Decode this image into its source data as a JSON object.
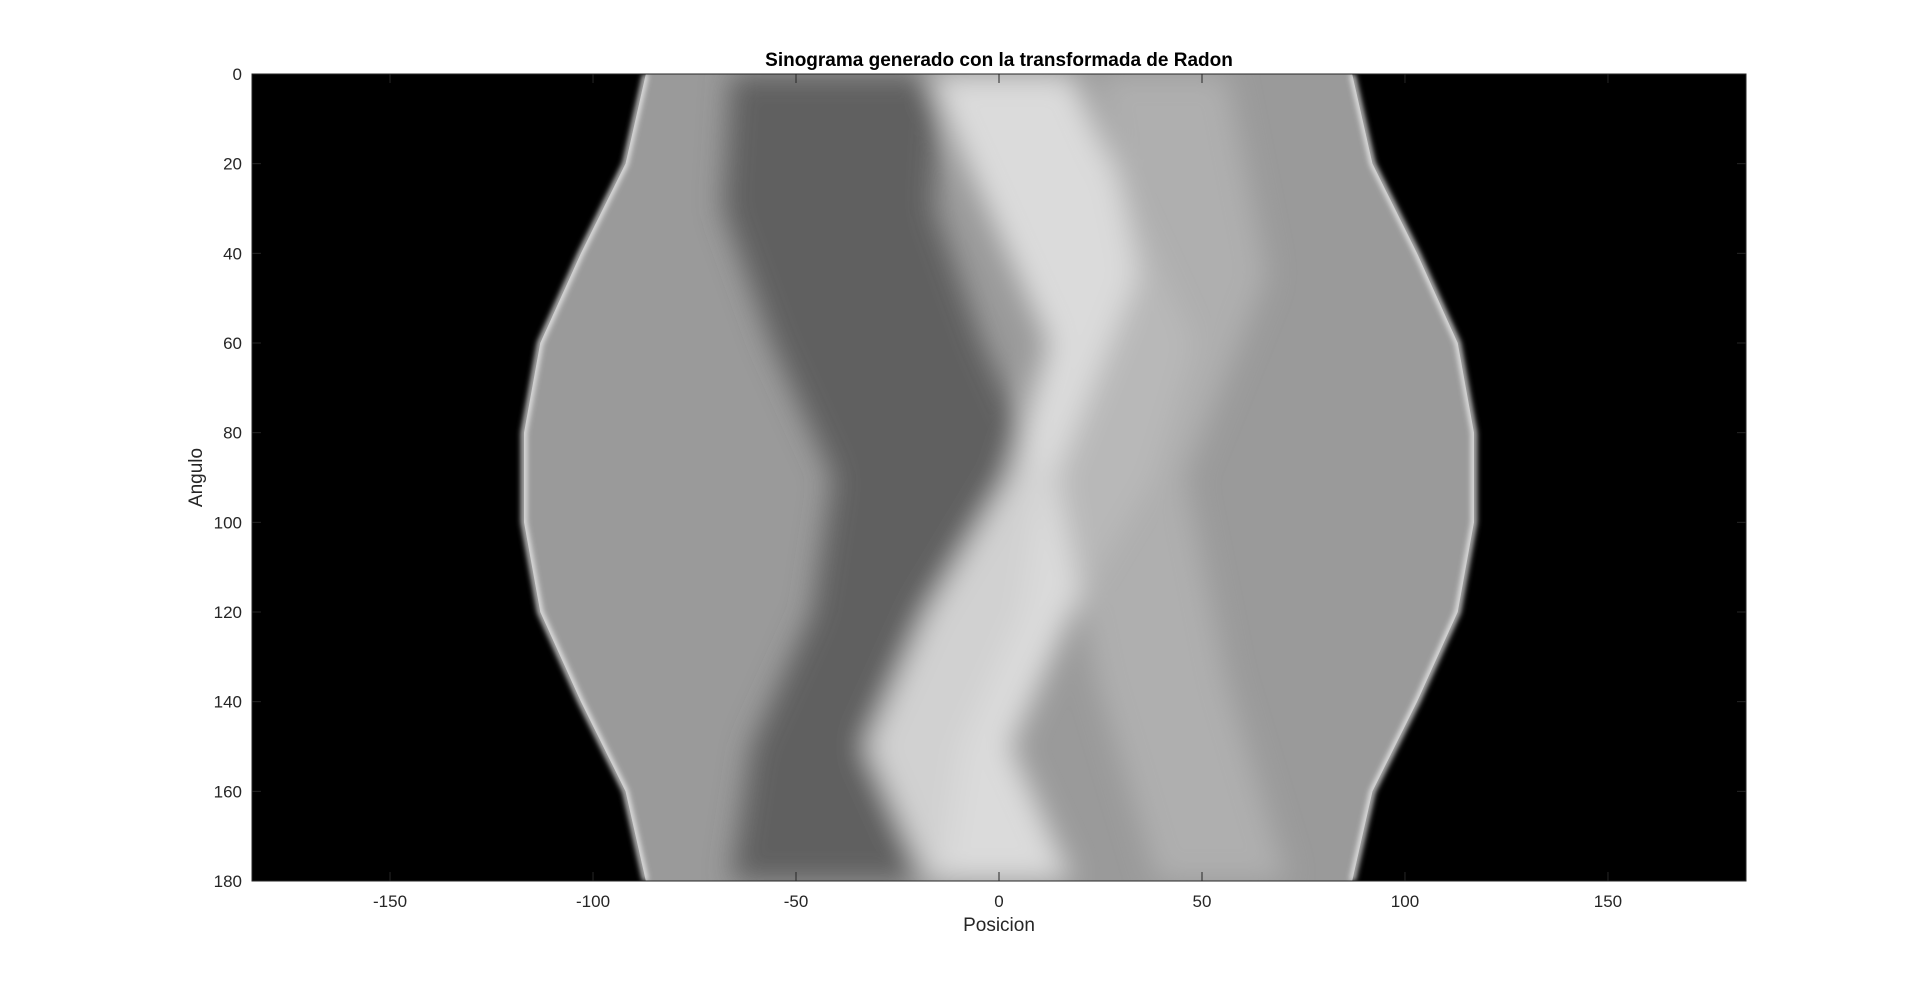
{
  "chart_data": {
    "type": "heatmap",
    "title": "Sinograma generado con la transformada de Radon",
    "xlabel": "Posicion",
    "ylabel": "Angulo",
    "xlim": [
      -184,
      184
    ],
    "ylim": [
      0,
      180
    ],
    "y_reversed": true,
    "colormap": "gray",
    "grid": false,
    "x_ticks": [
      -150,
      -100,
      -50,
      0,
      50,
      100,
      150
    ],
    "x_tick_labels": [
      "-150",
      "-100",
      "-50",
      "0",
      "50",
      "100",
      "150"
    ],
    "y_ticks": [
      0,
      20,
      40,
      60,
      80,
      100,
      120,
      140,
      160,
      180
    ],
    "y_tick_labels": [
      "0",
      "20",
      "40",
      "60",
      "80",
      "100",
      "120",
      "140",
      "160",
      "180"
    ],
    "outer_boundary": {
      "description": "support edges of the projection (bright rim)",
      "angles": [
        0,
        20,
        40,
        60,
        80,
        90,
        100,
        120,
        140,
        160,
        180
      ],
      "left_position": [
        -87,
        -92,
        -103,
        -113,
        -117,
        -117,
        -117,
        -113,
        -103,
        -92,
        -87
      ],
      "right_position": [
        87,
        92,
        103,
        113,
        117,
        117,
        117,
        113,
        103,
        92,
        87
      ]
    },
    "inner_structures": [
      {
        "angles": [
          0,
          30,
          60,
          90,
          120,
          150,
          180
        ],
        "center_position": [
          -40,
          -42,
          -30,
          -15,
          -20,
          -35,
          -40
        ],
        "intensity": "dark"
      },
      {
        "angles": [
          0,
          30,
          60,
          90,
          120,
          150,
          180
        ],
        "center_position": [
          0,
          15,
          30,
          20,
          0,
          -15,
          0
        ],
        "intensity": "bright"
      },
      {
        "angles": [
          0,
          45,
          90,
          135,
          180
        ],
        "center_position": [
          40,
          50,
          30,
          40,
          55
        ],
        "intensity": "mid"
      }
    ]
  }
}
